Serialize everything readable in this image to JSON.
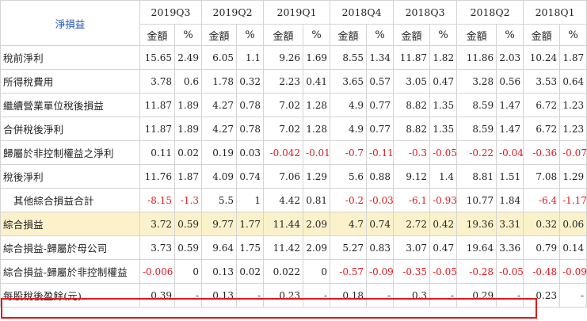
{
  "corner_label": "淨損益",
  "periods": [
    "2019Q3",
    "2019Q2",
    "2019Q1",
    "2018Q4",
    "2018Q3",
    "2018Q2",
    "2018Q1"
  ],
  "sub_headers": {
    "amount": "金額",
    "pct": "%"
  },
  "rows": [
    {
      "label": "稅前淨利",
      "values": [
        "15.65",
        "2.49",
        "6.05",
        "1.1",
        "9.26",
        "1.69",
        "8.55",
        "1.34",
        "11.87",
        "1.82",
        "11.86",
        "2.03",
        "10.24",
        "1.87"
      ]
    },
    {
      "label": "所得稅費用",
      "values": [
        "3.78",
        "0.6",
        "1.78",
        "0.32",
        "2.23",
        "0.41",
        "3.65",
        "0.57",
        "3.05",
        "0.47",
        "3.28",
        "0.56",
        "3.53",
        "0.64"
      ]
    },
    {
      "label": "繼續營業單位稅後損益",
      "values": [
        "11.87",
        "1.89",
        "4.27",
        "0.78",
        "7.02",
        "1.28",
        "4.9",
        "0.77",
        "8.82",
        "1.35",
        "8.59",
        "1.47",
        "6.72",
        "1.23"
      ]
    },
    {
      "label": "合併稅後淨利",
      "values": [
        "11.87",
        "1.89",
        "4.27",
        "0.78",
        "7.02",
        "1.28",
        "4.9",
        "0.77",
        "8.82",
        "1.35",
        "8.59",
        "1.47",
        "6.72",
        "1.23"
      ]
    },
    {
      "label": "歸屬於非控制權益之淨利",
      "values": [
        "0.11",
        "0.02",
        "0.19",
        "0.03",
        "-0.042",
        "-0.01",
        "-0.7",
        "-0.11",
        "-0.3",
        "-0.05",
        "-0.22",
        "-0.04",
        "-0.36",
        "-0.07"
      ]
    },
    {
      "label": "稅後淨利",
      "values": [
        "11.76",
        "1.87",
        "4.09",
        "0.74",
        "7.06",
        "1.29",
        "5.6",
        "0.88",
        "9.12",
        "1.4",
        "8.81",
        "1.51",
        "7.08",
        "1.29"
      ]
    },
    {
      "label": "其他綜合損益合計",
      "values": [
        "-8.15",
        "-1.3",
        "5.5",
        "1",
        "4.42",
        "0.81",
        "-0.2",
        "-0.03",
        "-6.1",
        "-0.93",
        "10.77",
        "1.84",
        "-6.4",
        "-1.17"
      ],
      "indent": true
    },
    {
      "label": "綜合損益",
      "values": [
        "3.72",
        "0.59",
        "9.77",
        "1.77",
        "11.44",
        "2.09",
        "4.7",
        "0.74",
        "2.72",
        "0.42",
        "19.36",
        "3.31",
        "0.32",
        "0.06"
      ],
      "highlight": true
    },
    {
      "label": "綜合損益-歸屬於母公司",
      "values": [
        "3.73",
        "0.59",
        "9.64",
        "1.75",
        "11.42",
        "2.09",
        "5.27",
        "0.83",
        "3.07",
        "0.47",
        "19.64",
        "3.36",
        "0.79",
        "0.14"
      ]
    },
    {
      "label": "綜合損益-歸屬於非控制權益",
      "values": [
        "-0.006",
        "0",
        "0.13",
        "0.02",
        "0.022",
        "0",
        "-0.57",
        "-0.09",
        "-0.35",
        "-0.05",
        "-0.28",
        "-0.05",
        "-0.48",
        "-0.09"
      ]
    },
    {
      "label": "每股稅後盈餘(元)",
      "values": [
        "0.39",
        "-",
        "0.13",
        "-",
        "0.23",
        "-",
        "0.18",
        "-",
        "0.3",
        "-",
        "0.29",
        "-",
        "0.23",
        "-"
      ],
      "boxed": true
    }
  ],
  "colors": {
    "negative": "#e0191c",
    "corner": "#1a4fb5",
    "highlight_bg": "#fbf2cc",
    "box_border": "#e0191c"
  }
}
